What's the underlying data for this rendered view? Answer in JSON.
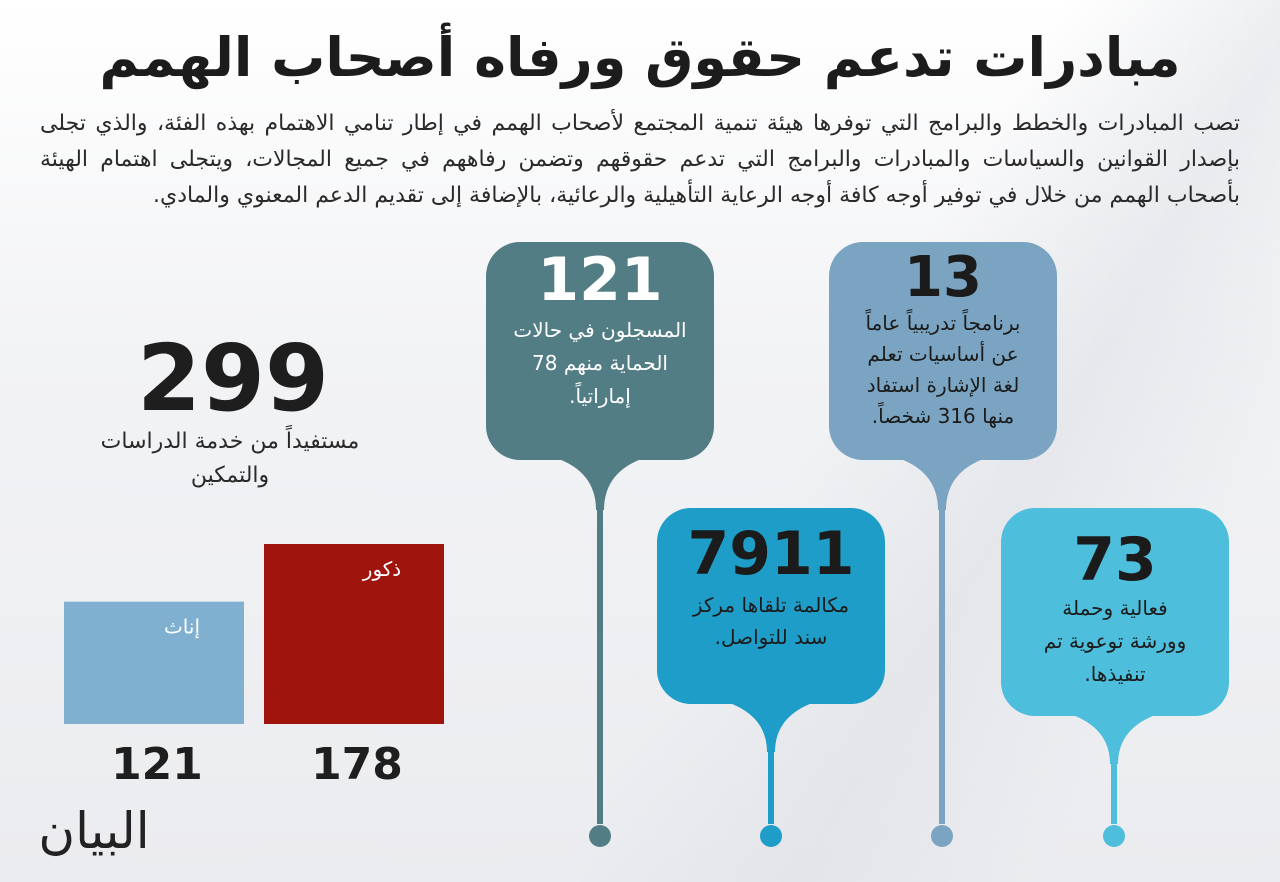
{
  "title": "مبادرات تدعم حقوق ورفاه أصحاب الهمم",
  "intro": "تصب المبادرات والخطط والبرامج التي توفرها هيئة تنمية المجتمع لأصحاب الهمم في إطار تنامي الاهتمام بهذه الفئة، والذي تجلى بإصدار القوانين والسياسات والمبادرات والبرامج التي تدعم حقوقهم وتضمن رفاههم في جميع المجالات، ويتجلى اهتمام الهيئة بأصحاب الهمم من خلال في توفير أوجه كافة أوجه الرعاية التأهيلية والرعائية، بالإضافة إلى تقديم الدعم المعنوي والمادي.",
  "beneficiaries": {
    "total": "299",
    "caption_lines": [
      "مستفيداً من خدمة الدراسات",
      "والتمكين"
    ]
  },
  "colors": {
    "slate": "#537d84",
    "steel": "#7aa4c1",
    "ocean": "#1d9dc7",
    "sky": "#4dbedb",
    "male": "#a0140e",
    "female": "#7fb0d0"
  },
  "callouts": [
    {
      "id": "protection",
      "value": "121",
      "lines": [
        "المسجلون في حالات",
        "الحماية منهم 78",
        "إماراتياً."
      ]
    },
    {
      "id": "training",
      "value": "13",
      "lines": [
        "برنامجاً تدريبياً عاماً",
        "عن أساسيات تعلم",
        "لغة الإشارة استفاد",
        "منها 316 شخصاً."
      ]
    },
    {
      "id": "calls",
      "value": "7911",
      "lines": [
        "مكالمة تلقاها مركز",
        "سند للتواصل."
      ]
    },
    {
      "id": "events",
      "value": "73",
      "lines": [
        "فعالية وحملة",
        "وورشة توعوية تم",
        "تنفيذها."
      ]
    }
  ],
  "chart_data": {
    "type": "bar",
    "title": "",
    "xlabel": "",
    "ylabel": "",
    "categories": [
      "إناث",
      "ذكور"
    ],
    "values": [
      121,
      178
    ],
    "ylim": [
      0,
      178
    ],
    "grid": false
  },
  "logo_text": "البيان"
}
